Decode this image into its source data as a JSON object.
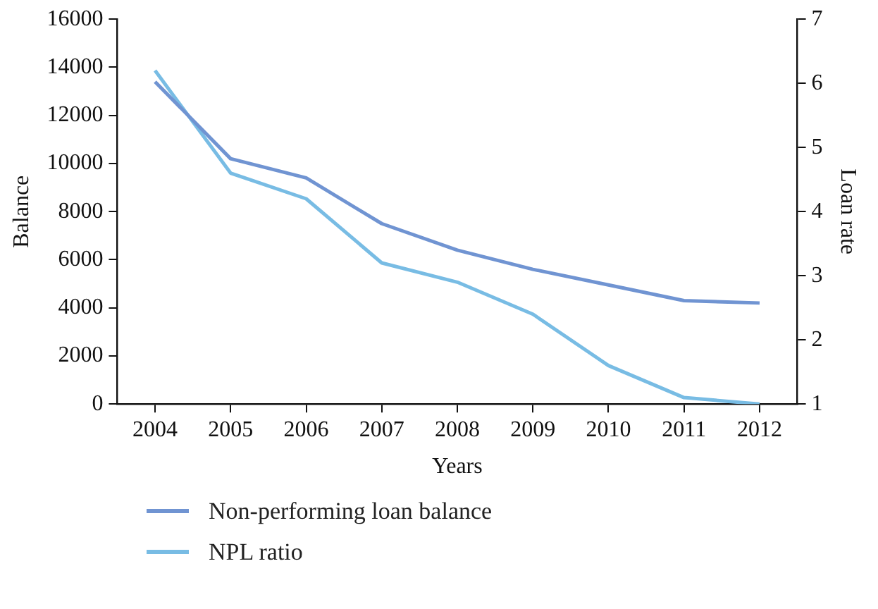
{
  "chart_data": {
    "type": "line",
    "xlabel": "Years",
    "ylabel": "Balance",
    "y2label": "Loan rate",
    "categories": [
      "2004",
      "2005",
      "2006",
      "2007",
      "2008",
      "2009",
      "2010",
      "2011",
      "2012"
    ],
    "series": [
      {
        "name": "Non-performing loan balance",
        "color": "#7094d2",
        "values": [
          13400,
          10200,
          9400,
          7500,
          6400,
          5600,
          4950,
          4300,
          4200
        ]
      },
      {
        "name": "NPL ratio",
        "color": "#78bce4",
        "axis": "y2",
        "values": [
          6.2,
          4.6,
          4.2,
          3.2,
          2.9,
          2.4,
          1.6,
          1.1,
          1.0
        ]
      }
    ],
    "ylim": [
      0,
      16000
    ],
    "yticks": [
      0,
      2000,
      4000,
      6000,
      8000,
      10000,
      12000,
      14000,
      16000
    ],
    "y2lim": [
      1,
      7
    ],
    "y2ticks": [
      1,
      2,
      3,
      4,
      5,
      6,
      7
    ],
    "grid": false,
    "legend": "bottom left",
    "marker": "none",
    "line_style": "solid"
  }
}
